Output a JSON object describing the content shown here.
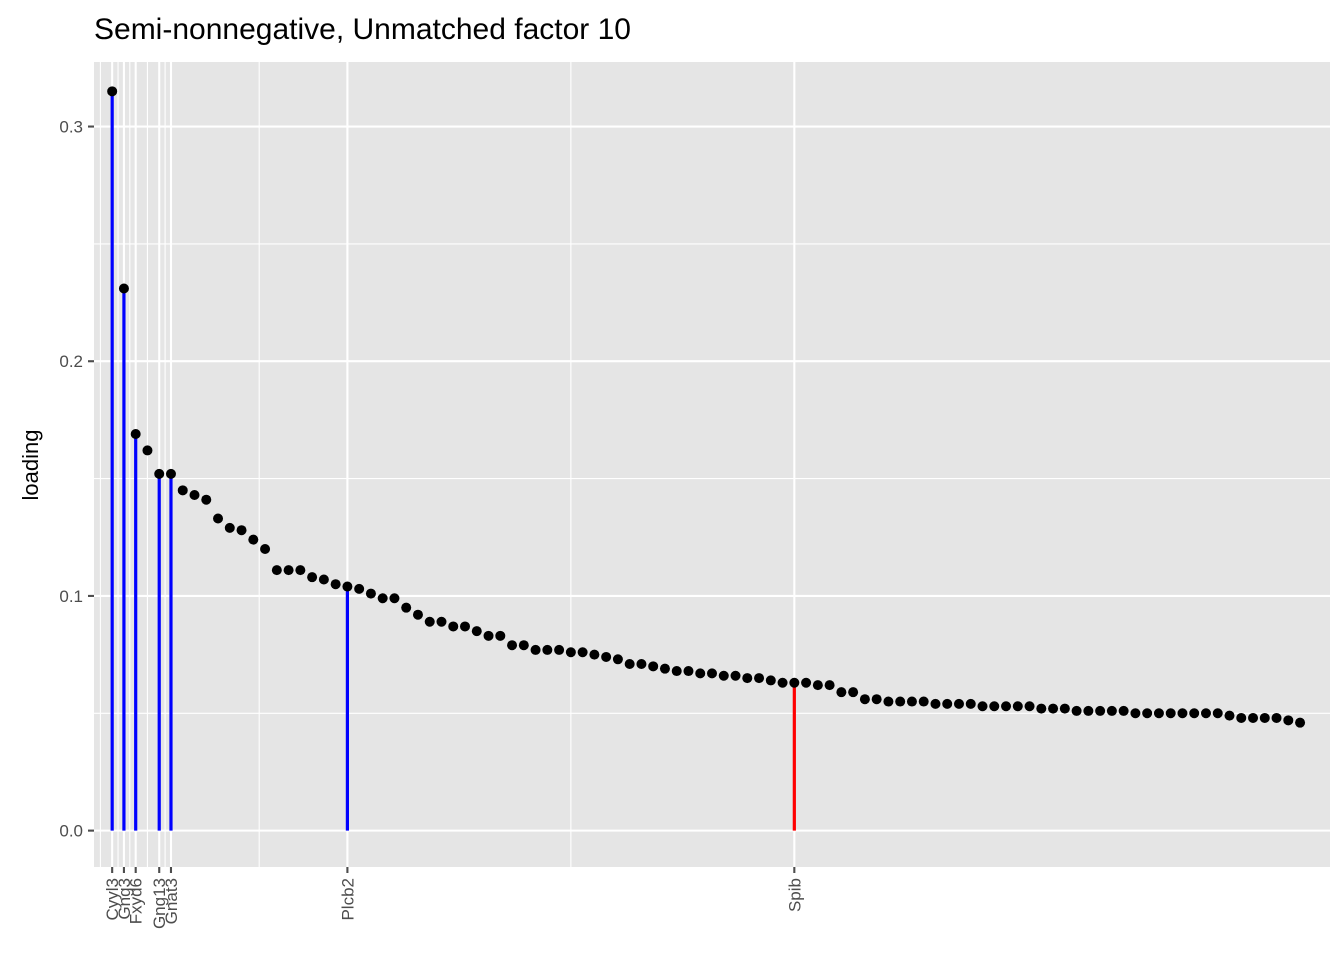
{
  "chart_data": {
    "type": "scatter",
    "title": "Semi-nonnegative, Unmatched factor 10",
    "xlabel": "",
    "ylabel": "loading",
    "ylim": [
      -0.0155,
      0.3275
    ],
    "y_ticks": [
      0.0,
      0.1,
      0.2,
      0.3
    ],
    "y_tick_labels": [
      "0.0",
      "0.1",
      "0.2",
      "0.3"
    ],
    "grid": true,
    "legend": "none",
    "colors": {
      "panel": "#e5e5e5",
      "grid": "#ffffff",
      "point": "#000000",
      "stem_blue": "#0000ff",
      "stem_red": "#ff0000",
      "tick": "#4d4d4d"
    },
    "x": [
      1,
      2,
      3,
      4,
      5,
      6,
      7,
      8,
      9,
      10,
      11,
      12,
      13,
      14,
      15,
      16,
      17,
      18,
      19,
      20,
      21,
      22,
      23,
      24,
      25,
      26,
      27,
      28,
      29,
      30,
      31,
      32,
      33,
      34,
      35,
      36,
      37,
      38,
      39,
      40,
      41,
      42,
      43,
      44,
      45,
      46,
      47,
      48,
      49,
      50,
      51,
      52,
      53,
      54,
      55,
      56,
      57,
      58,
      59,
      60,
      61,
      62,
      63,
      64,
      65,
      66,
      67,
      68,
      69,
      70,
      71,
      72,
      73,
      74,
      75,
      76,
      77,
      78,
      79,
      80,
      81,
      82,
      83,
      84,
      85,
      86,
      87,
      88,
      89,
      90,
      91,
      92,
      93,
      94,
      95,
      96,
      97,
      98,
      99,
      100,
      101,
      102
    ],
    "values": [
      0.315,
      0.231,
      0.169,
      0.162,
      0.152,
      0.152,
      0.145,
      0.143,
      0.141,
      0.133,
      0.129,
      0.128,
      0.124,
      0.12,
      0.111,
      0.111,
      0.111,
      0.108,
      0.107,
      0.105,
      0.104,
      0.103,
      0.101,
      0.099,
      0.099,
      0.095,
      0.092,
      0.089,
      0.089,
      0.087,
      0.087,
      0.085,
      0.083,
      0.083,
      0.079,
      0.079,
      0.077,
      0.077,
      0.077,
      0.076,
      0.076,
      0.075,
      0.074,
      0.073,
      0.071,
      0.071,
      0.07,
      0.069,
      0.068,
      0.068,
      0.067,
      0.067,
      0.066,
      0.066,
      0.065,
      0.065,
      0.064,
      0.063,
      0.063,
      0.063,
      0.062,
      0.062,
      0.059,
      0.059,
      0.056,
      0.056,
      0.055,
      0.055,
      0.055,
      0.055,
      0.054,
      0.054,
      0.054,
      0.054,
      0.053,
      0.053,
      0.053,
      0.053,
      0.053,
      0.052,
      0.052,
      0.052,
      0.051,
      0.051,
      0.051,
      0.051,
      0.051,
      0.05,
      0.05,
      0.05,
      0.05,
      0.05,
      0.05,
      0.05,
      0.05,
      0.049,
      0.048,
      0.048,
      0.048,
      0.048,
      0.047,
      0.046
    ],
    "highlighted": [
      {
        "label": "Cyyl3",
        "x": 1,
        "color": "blue"
      },
      {
        "label": "Gng3",
        "x": 2,
        "color": "blue"
      },
      {
        "label": "Fxyd6",
        "x": 3,
        "color": "blue"
      },
      {
        "label": "Gng13",
        "x": 5,
        "color": "blue"
      },
      {
        "label": "Gnat3",
        "x": 6,
        "color": "blue"
      },
      {
        "label": "Plcb2",
        "x": 21,
        "color": "blue"
      },
      {
        "label": "Spib",
        "x": 59,
        "color": "red"
      }
    ]
  }
}
